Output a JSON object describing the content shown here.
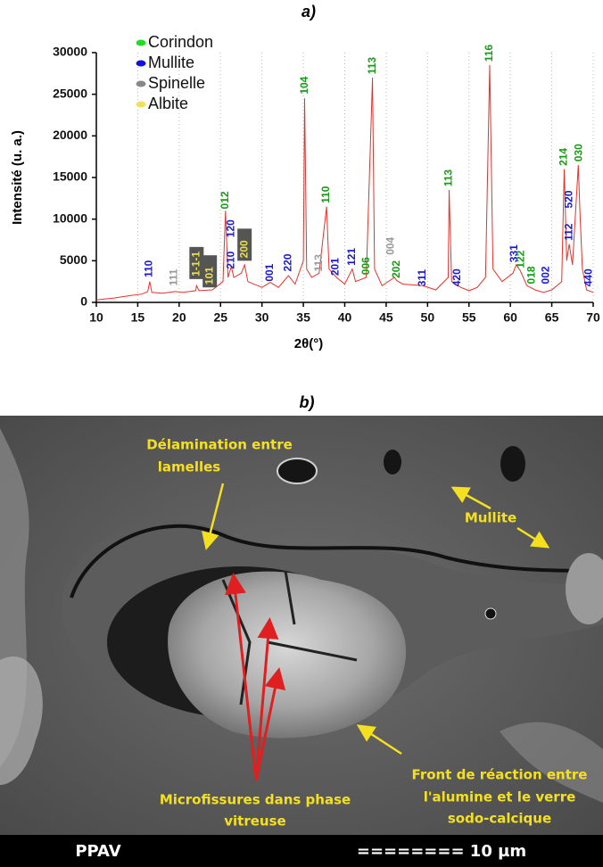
{
  "chart_data": {
    "type": "line",
    "title": "a)",
    "xlabel": "2θ(°)",
    "ylabel": "Intensité (u. a.)",
    "color": "#e8302a",
    "xlim": [
      10,
      70
    ],
    "xticks": [
      10,
      15,
      20,
      25,
      30,
      35,
      40,
      45,
      50,
      55,
      60,
      65,
      70
    ],
    "ylim": [
      0,
      30000
    ],
    "yticks": [
      0,
      5000,
      10000,
      15000,
      20000,
      25000,
      30000
    ],
    "grid": true,
    "x": [
      10,
      12,
      14,
      15.5,
      16.2,
      16.45,
      16.7,
      18,
      19.5,
      20.5,
      22,
      22.1,
      22.4,
      24,
      25.3,
      25.6,
      25.9,
      26.3,
      26.6,
      27.5,
      27.9,
      28.3,
      30,
      31,
      32,
      33.2,
      34,
      35,
      35.15,
      35.4,
      36,
      36.9,
      37.8,
      38.1,
      39,
      40,
      40.9,
      41.3,
      42.6,
      43.35,
      43.6,
      44.5,
      46,
      46.3,
      47,
      49.4,
      51,
      52.5,
      52.6,
      52.9,
      54,
      55,
      56,
      57,
      57.5,
      57.9,
      59,
      60.3,
      60.7,
      61.2,
      62,
      63,
      64,
      65,
      66.2,
      66.5,
      66.8,
      67.1,
      67.5,
      68.2,
      68.4,
      68.7,
      69.2,
      70
    ],
    "values": [
      300,
      500,
      800,
      1000,
      1300,
      2500,
      1200,
      1100,
      1300,
      1200,
      1400,
      2000,
      1400,
      1500,
      2500,
      11000,
      3000,
      4300,
      3000,
      3500,
      4500,
      2500,
      1800,
      2400,
      1800,
      3200,
      2200,
      5000,
      24500,
      4000,
      3000,
      3500,
      11500,
      4000,
      3000,
      2200,
      4000,
      2500,
      3000,
      27000,
      4000,
      2000,
      3000,
      2600,
      2200,
      2000,
      1500,
      3000,
      13500,
      2500,
      1800,
      1400,
      1800,
      3000,
      28500,
      4000,
      2500,
      3500,
      4500,
      3800,
      2000,
      1500,
      1200,
      1500,
      2500,
      16000,
      5000,
      7000,
      4500,
      16500,
      11000,
      4000,
      1500,
      1200
    ],
    "legend": [
      {
        "name": "Corindon",
        "color": "#22dd22"
      },
      {
        "name": "Mullite",
        "color": "#1111dd"
      },
      {
        "name": "Spinelle",
        "color": "#888888"
      },
      {
        "name": "Albite",
        "color": "#eee060"
      }
    ],
    "annotations": [
      {
        "text": "110",
        "x": 16.4,
        "y": 3000,
        "color": "#1a1acc"
      },
      {
        "text": "111",
        "x": 19.4,
        "y": 2000,
        "color": "#999999"
      },
      {
        "text": "1-1-1",
        "x": 22.1,
        "y": 2800,
        "color": "#e8e04a",
        "boxed": true
      },
      {
        "text": "101",
        "x": 23.7,
        "y": 1800,
        "color": "#e8e04a",
        "boxed": true
      },
      {
        "text": "012",
        "x": 25.6,
        "y": 11200,
        "color": "#1a9a1a"
      },
      {
        "text": "210",
        "x": 26.3,
        "y": 4000,
        "color": "#1a1acc"
      },
      {
        "text": "120",
        "x": 26.3,
        "y": 7800,
        "color": "#1a1acc"
      },
      {
        "text": "200",
        "x": 27.9,
        "y": 5000,
        "color": "#e8e04a",
        "boxed": true
      },
      {
        "text": "001",
        "x": 31,
        "y": 2500,
        "color": "#1a1acc"
      },
      {
        "text": "220",
        "x": 33.2,
        "y": 3700,
        "color": "#1a1acc"
      },
      {
        "text": "104",
        "x": 35.2,
        "y": 25000,
        "color": "#1a9a1a"
      },
      {
        "text": "113",
        "x": 36.9,
        "y": 3700,
        "color": "#999999"
      },
      {
        "text": "110",
        "x": 37.8,
        "y": 11900,
        "color": "#1a9a1a"
      },
      {
        "text": "201",
        "x": 38.9,
        "y": 3200,
        "color": "#1a1acc"
      },
      {
        "text": "121",
        "x": 40.9,
        "y": 4400,
        "color": "#1a1acc"
      },
      {
        "text": "006",
        "x": 42.6,
        "y": 3300,
        "color": "#1a9a1a"
      },
      {
        "text": "113",
        "x": 43.35,
        "y": 27400,
        "color": "#1a9a1a"
      },
      {
        "text": "004",
        "x": 45.6,
        "y": 5700,
        "color": "#999999"
      },
      {
        "text": "202",
        "x": 46.3,
        "y": 2900,
        "color": "#1a9a1a"
      },
      {
        "text": "311",
        "x": 49.4,
        "y": 1900,
        "color": "#1a1acc"
      },
      {
        "text": "113",
        "x": 52.6,
        "y": 13900,
        "color": "#1a9a1a"
      },
      {
        "text": "420",
        "x": 53.6,
        "y": 1900,
        "color": "#1a1acc"
      },
      {
        "text": "116",
        "x": 57.5,
        "y": 28900,
        "color": "#1a9a1a"
      },
      {
        "text": "331",
        "x": 60.5,
        "y": 4800,
        "color": "#1a1acc"
      },
      {
        "text": "122",
        "x": 61.3,
        "y": 4100,
        "color": "#1a9a1a"
      },
      {
        "text": "018",
        "x": 62.6,
        "y": 2200,
        "color": "#1a9a1a"
      },
      {
        "text": "002",
        "x": 64.3,
        "y": 2200,
        "color": "#1a1acc"
      },
      {
        "text": "214",
        "x": 66.5,
        "y": 16400,
        "color": "#1a9a1a"
      },
      {
        "text": "112",
        "x": 67.1,
        "y": 7400,
        "color": "#1a1acc"
      },
      {
        "text": "520",
        "x": 67.1,
        "y": 11300,
        "color": "#1a1acc"
      },
      {
        "text": "030",
        "x": 68.3,
        "y": 16900,
        "color": "#1a9a1a"
      },
      {
        "text": "440",
        "x": 69.5,
        "y": 1900,
        "color": "#1a1acc"
      }
    ]
  },
  "figure_b": {
    "label": "b)",
    "annotations": {
      "delamination": [
        "Délamination entre",
        "lamelles"
      ],
      "mullite": [
        "Mullite"
      ],
      "microfissures": [
        "Microfissures dans phase",
        "vitreuse"
      ],
      "front": [
        "Front de réaction entre",
        "l'alumine et le verre",
        "sodo-calcique"
      ]
    },
    "sample": "PPAV",
    "scale": "======== 10 µm"
  }
}
